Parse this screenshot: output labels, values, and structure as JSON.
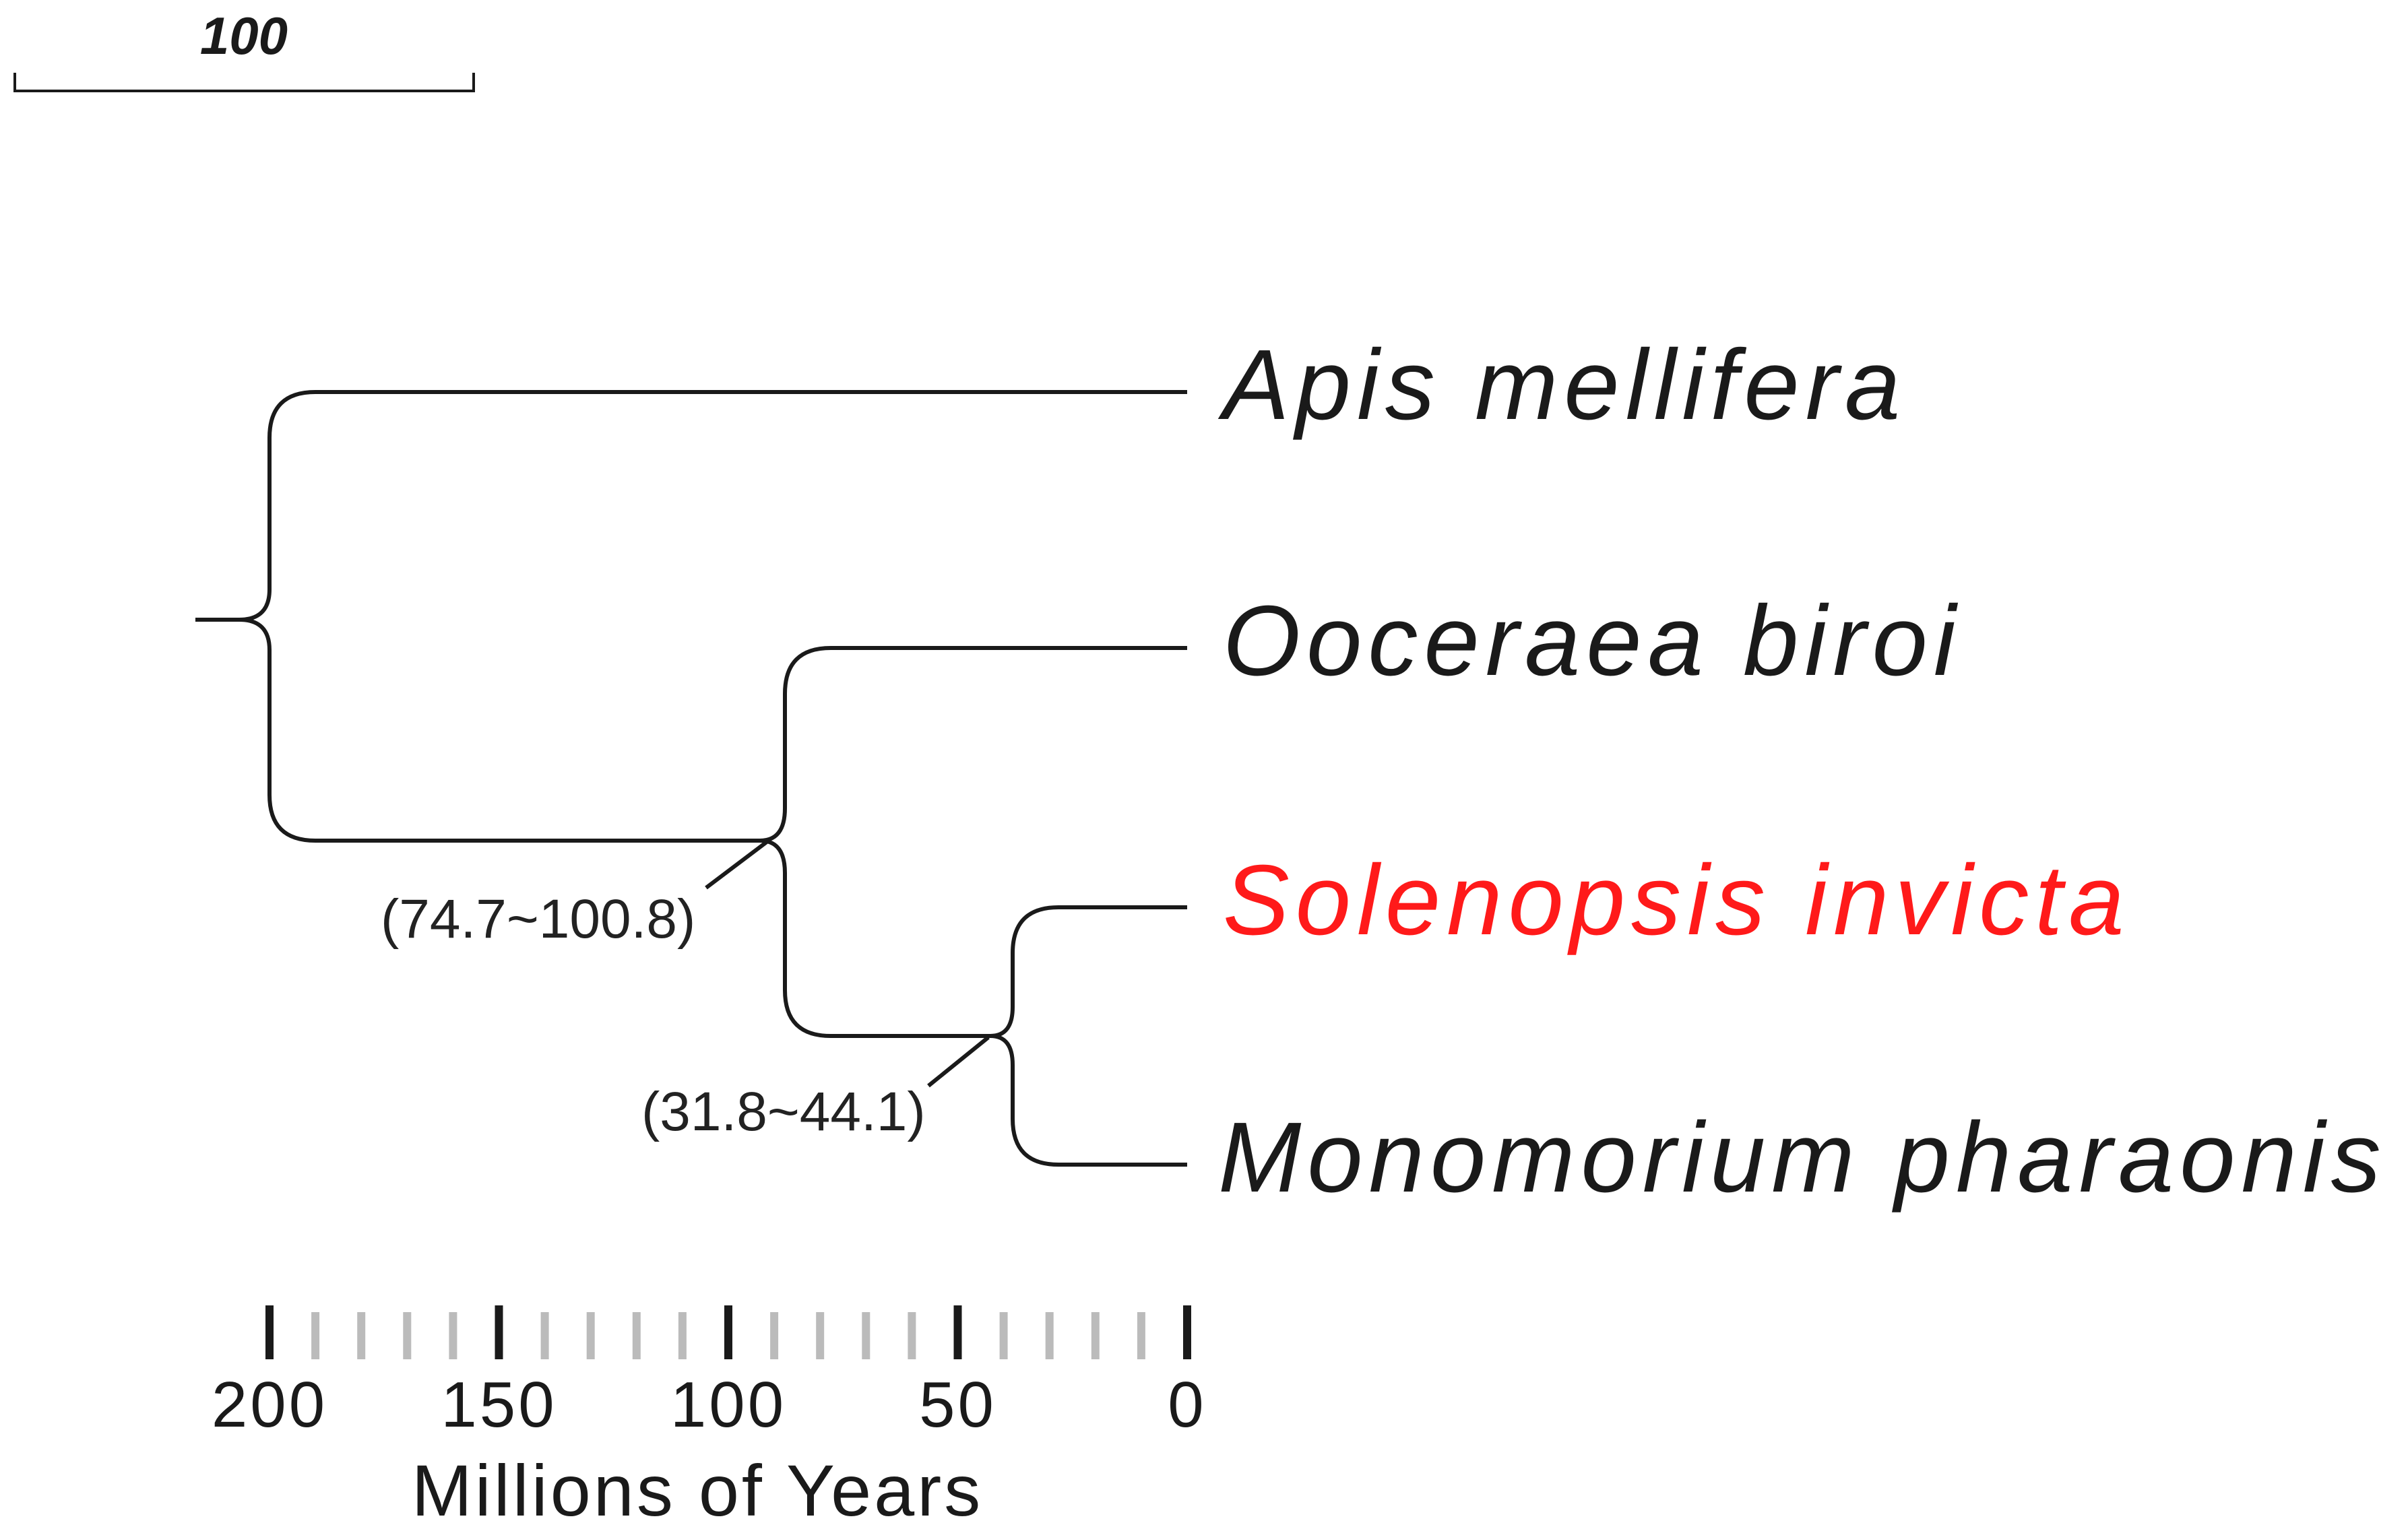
{
  "scale_bar": {
    "label": "100"
  },
  "taxa": [
    {
      "name": "Apis mellifera",
      "color": "#1a1a1a"
    },
    {
      "name": "Ooceraea biroi",
      "color": "#1a1a1a"
    },
    {
      "name": "Solenopsis invicta",
      "color": "#ff1a1a"
    },
    {
      "name": "Monomorium pharaonis",
      "color": "#1a1a1a"
    }
  ],
  "nodes": {
    "formicidae_split": {
      "label": "(74.7~100.8)"
    },
    "solenopsis_monomorium_split": {
      "label": "(31.8~44.1)"
    }
  },
  "time_axis": {
    "title": "Millions of Years",
    "unit": "Millions of Years",
    "range": [
      200,
      0
    ],
    "major_ticks": [
      "200",
      "150",
      "100",
      "50",
      "0"
    ],
    "minor_step": 10
  }
}
